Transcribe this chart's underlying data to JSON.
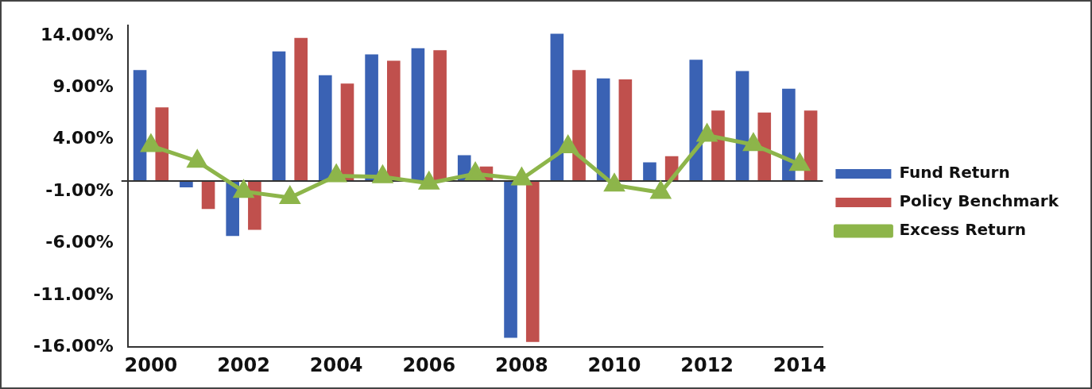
{
  "chart_data": {
    "type": "bar",
    "categories": [
      "2000",
      null,
      "2002",
      null,
      "2004",
      null,
      "2006",
      null,
      "2008",
      null,
      "2010",
      null,
      "2012",
      null,
      "2014"
    ],
    "series": [
      {
        "name": "Fund Return",
        "color": "#3a62b4",
        "values": [
          10.7,
          -0.6,
          -5.3,
          12.5,
          10.2,
          12.2,
          12.8,
          2.5,
          -15.1,
          14.2,
          9.9,
          1.8,
          11.7,
          10.6,
          8.9
        ]
      },
      {
        "name": "Policy Benchmark",
        "color": "#c0504d",
        "values": [
          7.1,
          -2.7,
          -4.7,
          13.8,
          9.4,
          11.6,
          12.6,
          1.4,
          -15.5,
          10.7,
          9.8,
          2.4,
          6.8,
          6.6,
          6.8
        ]
      },
      {
        "name": "Excess Return",
        "type": "line",
        "color": "#8db54a",
        "marker": "triangle",
        "values": [
          3.4,
          1.9,
          -1.0,
          -1.6,
          0.5,
          0.4,
          -0.2,
          0.7,
          0.2,
          3.3,
          -0.4,
          -1.1,
          4.4,
          3.5,
          1.6
        ]
      }
    ],
    "ylim": [
      -16,
      15
    ],
    "yticks": [
      {
        "value": 14,
        "label": "14.00%"
      },
      {
        "value": 9,
        "label": "9.00%"
      },
      {
        "value": 4,
        "label": "4.00%"
      },
      {
        "value": -1,
        "label": "-1.00%"
      },
      {
        "value": -6,
        "label": "-6.00%"
      },
      {
        "value": -11,
        "label": "-11.00%"
      },
      {
        "value": -16,
        "label": "-16.00%"
      }
    ],
    "grid": false,
    "legend": "right"
  }
}
